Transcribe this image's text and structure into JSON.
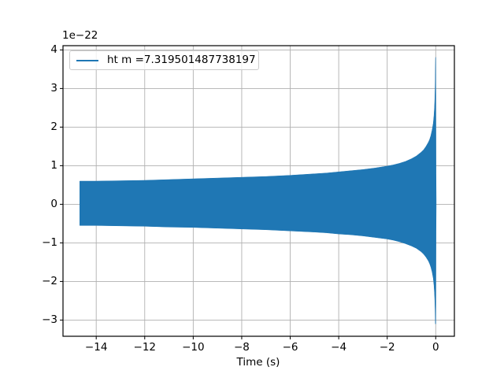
{
  "figure": {
    "offset_text": "1e−22",
    "xlabel": "Time (s)"
  },
  "legend": {
    "label": "ht m =7.319501487738197"
  },
  "colors": {
    "line": "#1f77b4",
    "grid": "#b0b0b0",
    "spine": "#000000",
    "tick": "#000000",
    "legend_edge": "#cccccc",
    "legend_bg": "rgba(255,255,255,0.8)",
    "background": "#ffffff"
  },
  "chart_data": {
    "type": "line",
    "title": "",
    "xlabel": "Time (s)",
    "ylabel": "",
    "y_offset_factor": "1e−22",
    "grid": true,
    "legend_position": "upper left",
    "xlim": [
      -15.37,
      0.77
    ],
    "ylim": [
      -3.42,
      4.11
    ],
    "xticks": {
      "values": [
        -14,
        -12,
        -10,
        -8,
        -6,
        -4,
        -2,
        0
      ],
      "labels": [
        "−14",
        "−12",
        "−10",
        "−8",
        "−6",
        "−4",
        "−2",
        "0"
      ]
    },
    "yticks": {
      "values": [
        -3,
        -2,
        -1,
        0,
        1,
        2,
        3,
        4
      ],
      "labels": [
        "−3",
        "−2",
        "−1",
        "0",
        "1",
        "2",
        "3",
        "4"
      ]
    },
    "series": [
      {
        "name": "ht m =7.319501487738197",
        "color": "#1f77b4",
        "description": "Gravitational-wave chirp strain ht vs time; dense oscillations render as a solid band between the upper and lower envelope, sweeping up to a merger spike at t ≈ 0 s (peak ≈ +3.8e-22, trough ≈ −3.1e-22), starting at t ≈ −14.7 s with amplitude ≈ ±0.6e-22.",
        "envelope": {
          "t": [
            -14.68,
            -14,
            -13,
            -12,
            -11,
            -10,
            -9,
            -8,
            -7,
            -6,
            -5,
            -4.5,
            -4,
            -3.5,
            -3,
            -2.5,
            -2,
            -1.75,
            -1.5,
            -1.25,
            -1,
            -0.8,
            -0.6,
            -0.5,
            -0.4,
            -0.3,
            -0.25,
            -0.2,
            -0.15,
            -0.1,
            -0.07,
            -0.05,
            -0.035,
            -0.025,
            -0.018,
            -0.012,
            -0.008,
            -0.004,
            0,
            0.006,
            0.012,
            0.02
          ],
          "upper": [
            0.6,
            0.6,
            0.61,
            0.62,
            0.64,
            0.66,
            0.68,
            0.7,
            0.72,
            0.75,
            0.79,
            0.81,
            0.84,
            0.87,
            0.9,
            0.94,
            0.99,
            1.02,
            1.06,
            1.11,
            1.18,
            1.25,
            1.35,
            1.41,
            1.5,
            1.61,
            1.68,
            1.78,
            1.92,
            2.1,
            2.3,
            2.5,
            2.73,
            2.98,
            3.24,
            3.56,
            3.76,
            3.81,
            3.81,
            2.5,
            0.8,
            0.1
          ],
          "lower": [
            -0.55,
            -0.55,
            -0.56,
            -0.57,
            -0.59,
            -0.6,
            -0.62,
            -0.64,
            -0.66,
            -0.69,
            -0.72,
            -0.74,
            -0.77,
            -0.79,
            -0.82,
            -0.86,
            -0.9,
            -0.93,
            -0.97,
            -1.02,
            -1.08,
            -1.14,
            -1.23,
            -1.29,
            -1.37,
            -1.47,
            -1.54,
            -1.63,
            -1.75,
            -1.92,
            -2.1,
            -2.29,
            -2.5,
            -2.72,
            -2.96,
            -3.1,
            -3.1,
            -3.1,
            -3.1,
            -2.2,
            -0.7,
            -0.05
          ]
        }
      }
    ]
  }
}
